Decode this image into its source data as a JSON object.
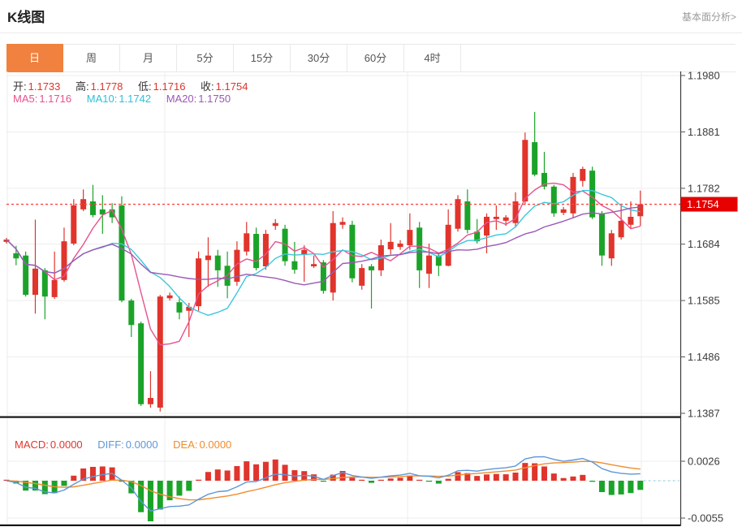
{
  "header": {
    "title": "K线图",
    "link_label": "基本面分析>"
  },
  "toolbar": {
    "tabs": [
      {
        "label": "日",
        "active": true
      },
      {
        "label": "周",
        "active": false
      },
      {
        "label": "月",
        "active": false
      },
      {
        "label": "5分",
        "active": false
      },
      {
        "label": "15分",
        "active": false
      },
      {
        "label": "30分",
        "active": false
      },
      {
        "label": "60分",
        "active": false
      },
      {
        "label": "4时",
        "active": false
      }
    ]
  },
  "price_legend": {
    "open_label": "开:",
    "open": "1.1733",
    "high_label": "高:",
    "high": "1.1778",
    "low_label": "低:",
    "low": "1.1716",
    "close_label": "收:",
    "close": "1.1754",
    "ma5_label": "MA5:",
    "ma5": "1.1716",
    "ma10_label": "MA10:",
    "ma10": "1.1742",
    "ma20_label": "MA20:",
    "ma20": "1.1750"
  },
  "macd_legend": {
    "macd_label": "MACD:",
    "macd": "0.0000",
    "diff_label": "DIFF:",
    "diff": "0.0000",
    "dea_label": "DEA:",
    "dea": "0.0000"
  },
  "price_tag": "1.1754",
  "colors": {
    "up": "#e0342c",
    "down": "#1ba329",
    "ma5": "#e8518d",
    "ma10": "#3ec6dd",
    "ma20": "#9b59b6",
    "diff": "#5e97d8",
    "dea": "#f08c2e",
    "tab_accent": "#f0813e",
    "price_line": "#ff4440",
    "tag_bg": "#e60000",
    "grid": "#ededed",
    "axis": "#333333",
    "label": "#3c3c3c"
  },
  "chart_data": {
    "type": "candlestick",
    "title": "K线图",
    "y_ticks": [
      "1.1980",
      "1.1881",
      "1.1782",
      "1.1684",
      "1.1585",
      "1.1486",
      "1.1387"
    ],
    "y_range": [
      1.1387,
      1.198
    ],
    "current_price": 1.1754,
    "ma_periods": [
      5,
      10,
      20
    ],
    "candles": [
      [
        1.1688,
        1.1695,
        1.1685,
        1.1692
      ],
      [
        1.1668,
        1.1681,
        1.1647,
        1.1659
      ],
      [
        1.1664,
        1.1671,
        1.1592,
        1.1595
      ],
      [
        1.1595,
        1.1727,
        1.1562,
        1.1641
      ],
      [
        1.1638,
        1.1642,
        1.1552,
        1.1592
      ],
      [
        1.1591,
        1.1671,
        1.1588,
        1.1621
      ],
      [
        1.1621,
        1.1713,
        1.1618,
        1.1689
      ],
      [
        1.1685,
        1.1763,
        1.1682,
        1.1752
      ],
      [
        1.1745,
        1.178,
        1.1742,
        1.1763
      ],
      [
        1.1759,
        1.1788,
        1.1731,
        1.1735
      ],
      [
        1.1745,
        1.177,
        1.1702,
        1.1736
      ],
      [
        1.1745,
        1.1756,
        1.1721,
        1.1731
      ],
      [
        1.1752,
        1.1768,
        1.1582,
        1.1585
      ],
      [
        1.1585,
        1.1588,
        1.1521,
        1.1542
      ],
      [
        1.1545,
        1.1548,
        1.14,
        1.1403
      ],
      [
        1.1403,
        1.1461,
        1.1397,
        1.1414
      ],
      [
        1.1397,
        1.1595,
        1.139,
        1.1592
      ],
      [
        1.1589,
        1.1599,
        1.1585,
        1.1594
      ],
      [
        1.1582,
        1.1592,
        1.1552,
        1.1564
      ],
      [
        1.1567,
        1.1581,
        1.1521,
        1.1574
      ],
      [
        1.1575,
        1.1671,
        1.1567,
        1.1659
      ],
      [
        1.1656,
        1.1696,
        1.1609,
        1.1664
      ],
      [
        1.1664,
        1.1674,
        1.1609,
        1.1638
      ],
      [
        1.1646,
        1.1671,
        1.1589,
        1.1611
      ],
      [
        1.1618,
        1.1689,
        1.1611,
        1.1674
      ],
      [
        1.1671,
        1.1723,
        1.1664,
        1.1703
      ],
      [
        1.1702,
        1.1713,
        1.1638,
        1.1642
      ],
      [
        1.1645,
        1.1709,
        1.1639,
        1.1702
      ],
      [
        1.1716,
        1.1728,
        1.1709,
        1.1721
      ],
      [
        1.1711,
        1.1718,
        1.1646,
        1.1654
      ],
      [
        1.1654,
        1.1688,
        1.1632,
        1.1639
      ],
      [
        1.1666,
        1.1682,
        1.1618,
        1.1674
      ],
      [
        1.1645,
        1.1664,
        1.1642,
        1.1649
      ],
      [
        1.1652,
        1.1656,
        1.1597,
        1.1602
      ],
      [
        1.1599,
        1.1742,
        1.1585,
        1.1721
      ],
      [
        1.1718,
        1.1731,
        1.1711,
        1.1723
      ],
      [
        1.1718,
        1.1725,
        1.1617,
        1.1624
      ],
      [
        1.1611,
        1.1649,
        1.1604,
        1.1642
      ],
      [
        1.1645,
        1.1649,
        1.1571,
        1.1638
      ],
      [
        1.1638,
        1.1692,
        1.1628,
        1.1682
      ],
      [
        1.1675,
        1.1721,
        1.1666,
        1.1688
      ],
      [
        1.1679,
        1.1691,
        1.1674,
        1.1685
      ],
      [
        1.1682,
        1.1738,
        1.1674,
        1.1709
      ],
      [
        1.1713,
        1.1723,
        1.1607,
        1.1638
      ],
      [
        1.1632,
        1.1685,
        1.1607,
        1.1664
      ],
      [
        1.1664,
        1.1668,
        1.1628,
        1.1646
      ],
      [
        1.1646,
        1.1745,
        1.1645,
        1.1718
      ],
      [
        1.1711,
        1.177,
        1.1706,
        1.1763
      ],
      [
        1.1759,
        1.178,
        1.1703,
        1.1709
      ],
      [
        1.1706,
        1.1728,
        1.1685,
        1.1689
      ],
      [
        1.1699,
        1.1738,
        1.1668,
        1.1732
      ],
      [
        1.1728,
        1.1752,
        1.1709,
        1.1732
      ],
      [
        1.1725,
        1.1735,
        1.1716,
        1.1731
      ],
      [
        1.1721,
        1.1775,
        1.1713,
        1.1759
      ],
      [
        1.1759,
        1.188,
        1.1753,
        1.1867
      ],
      [
        1.1863,
        1.1916,
        1.1803,
        1.1806
      ],
      [
        1.1809,
        1.1846,
        1.178,
        1.1785
      ],
      [
        1.1785,
        1.1788,
        1.1732,
        1.1738
      ],
      [
        1.1739,
        1.1749,
        1.1735,
        1.1745
      ],
      [
        1.1738,
        1.1809,
        1.1731,
        1.1802
      ],
      [
        1.1795,
        1.182,
        1.1785,
        1.1816
      ],
      [
        1.1813,
        1.182,
        1.1728,
        1.1731
      ],
      [
        1.1738,
        1.1742,
        1.1646,
        1.1664
      ],
      [
        1.1659,
        1.1709,
        1.1646,
        1.1703
      ],
      [
        1.1696,
        1.1753,
        1.1692,
        1.1725
      ],
      [
        1.1718,
        1.1759,
        1.1711,
        1.1732
      ],
      [
        1.1733,
        1.1778,
        1.1716,
        1.1754
      ]
    ],
    "macd": {
      "type": "histogram+lines",
      "params": [
        12,
        26,
        9
      ],
      "y_ticks": [
        "0.0026",
        "-0.0055"
      ]
    }
  }
}
